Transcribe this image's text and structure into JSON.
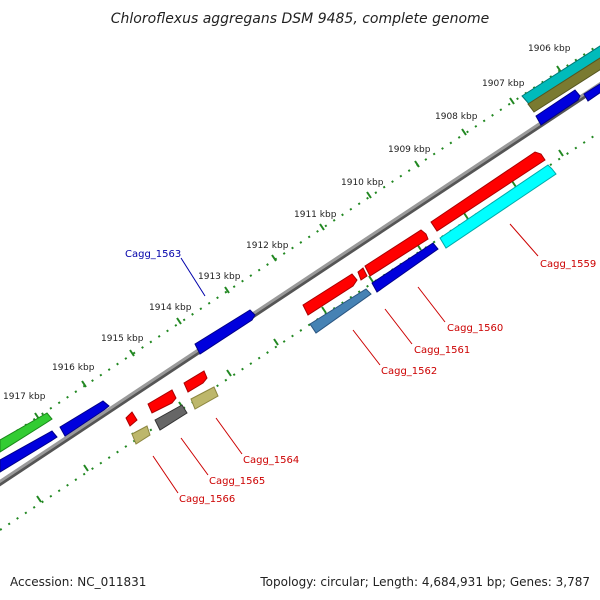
{
  "title": "Chloroflexus aggregans DSM 9485, complete genome",
  "footer": {
    "accession": "Accession: NC_011831",
    "summary": "Topology: circular; Length: 4,684,931 bp; Genes: 3,787"
  },
  "ticks": [
    "1906 kbp",
    "1907 kbp",
    "1908 kbp",
    "1909 kbp",
    "1910 kbp",
    "1911 kbp",
    "1912 kbp",
    "1913 kbp",
    "1914 kbp",
    "1915 kbp",
    "1916 kbp",
    "1917 kbp"
  ],
  "gene_labels": [
    "Cagg_1559",
    "Cagg_1560",
    "Cagg_1561",
    "Cagg_1562",
    "Cagg_1563",
    "Cagg_1564",
    "Cagg_1565",
    "Cagg_1566"
  ],
  "colors": {
    "red": "#ff0000",
    "blue": "#0000dd",
    "cyan": "#00ffff",
    "green": "#33cc33",
    "steelblue": "#4682b4",
    "olive": "#8b8b3a",
    "khaki": "#bdb76b",
    "dimgray": "#666666",
    "darkcyan": "#00bbbb",
    "backbone": "#888888",
    "tick_green": "#228822",
    "label_red": "#cc0000",
    "label_blue": "#0000aa"
  }
}
